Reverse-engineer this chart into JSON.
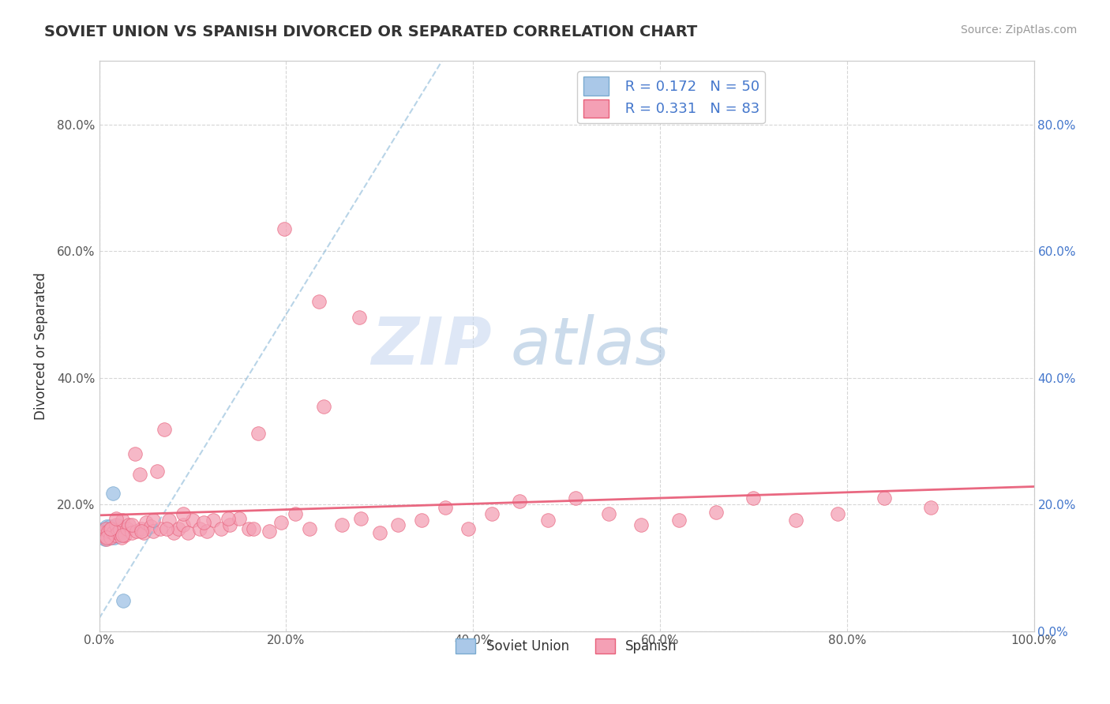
{
  "title": "SOVIET UNION VS SPANISH DIVORCED OR SEPARATED CORRELATION CHART",
  "source_text": "Source: ZipAtlas.com",
  "ylabel": "Divorced or Separated",
  "xlim": [
    0.0,
    1.0
  ],
  "ylim": [
    0.0,
    0.9
  ],
  "xtick_vals": [
    0.0,
    0.2,
    0.4,
    0.6,
    0.8,
    1.0
  ],
  "ytick_vals": [
    0.0,
    0.2,
    0.4,
    0.6,
    0.8
  ],
  "legend_r1": "R = 0.172",
  "legend_n1": "N = 50",
  "legend_r2": "R = 0.331",
  "legend_n2": "N = 83",
  "soviet_color": "#aac8e8",
  "spanish_color": "#f4a0b5",
  "soviet_edge_color": "#7aaad0",
  "spanish_edge_color": "#e8607a",
  "soviet_line_color": "#8ab8d8",
  "spanish_line_color": "#e8607a",
  "title_fontsize": 14,
  "background_color": "#ffffff",
  "grid_color": "#cccccc",
  "watermark_left": "ZIP",
  "watermark_right": "atlas",
  "soviet_points_x": [
    0.002,
    0.003,
    0.003,
    0.004,
    0.004,
    0.005,
    0.005,
    0.005,
    0.006,
    0.006,
    0.007,
    0.007,
    0.007,
    0.008,
    0.008,
    0.008,
    0.009,
    0.009,
    0.009,
    0.01,
    0.01,
    0.01,
    0.011,
    0.011,
    0.012,
    0.012,
    0.013,
    0.013,
    0.014,
    0.014,
    0.015,
    0.015,
    0.016,
    0.016,
    0.017,
    0.017,
    0.018,
    0.018,
    0.019,
    0.019,
    0.02,
    0.02,
    0.021,
    0.021,
    0.022,
    0.022,
    0.023,
    0.024,
    0.025,
    0.026
  ],
  "soviet_points_y": [
    0.155,
    0.16,
    0.152,
    0.158,
    0.148,
    0.162,
    0.155,
    0.15,
    0.158,
    0.145,
    0.162,
    0.158,
    0.152,
    0.165,
    0.155,
    0.148,
    0.16,
    0.155,
    0.15,
    0.162,
    0.158,
    0.152,
    0.165,
    0.155,
    0.16,
    0.152,
    0.155,
    0.148,
    0.162,
    0.158,
    0.218,
    0.155,
    0.162,
    0.148,
    0.158,
    0.152,
    0.165,
    0.16,
    0.152,
    0.158,
    0.162,
    0.155,
    0.16,
    0.15,
    0.165,
    0.155,
    0.158,
    0.162,
    0.155,
    0.048
  ],
  "spanish_points_x": [
    0.003,
    0.005,
    0.007,
    0.008,
    0.01,
    0.012,
    0.013,
    0.015,
    0.017,
    0.018,
    0.02,
    0.022,
    0.024,
    0.025,
    0.027,
    0.03,
    0.032,
    0.035,
    0.038,
    0.04,
    0.043,
    0.045,
    0.048,
    0.05,
    0.055,
    0.058,
    0.062,
    0.065,
    0.07,
    0.075,
    0.08,
    0.085,
    0.09,
    0.095,
    0.1,
    0.108,
    0.115,
    0.122,
    0.13,
    0.14,
    0.15,
    0.16,
    0.17,
    0.182,
    0.195,
    0.21,
    0.225,
    0.24,
    0.26,
    0.28,
    0.3,
    0.32,
    0.345,
    0.37,
    0.395,
    0.42,
    0.45,
    0.48,
    0.51,
    0.545,
    0.58,
    0.62,
    0.66,
    0.7,
    0.745,
    0.79,
    0.84,
    0.89,
    0.008,
    0.012,
    0.018,
    0.025,
    0.035,
    0.045,
    0.058,
    0.072,
    0.09,
    0.112,
    0.138,
    0.165,
    0.198,
    0.235,
    0.278
  ],
  "spanish_points_y": [
    0.155,
    0.15,
    0.162,
    0.145,
    0.158,
    0.148,
    0.162,
    0.155,
    0.152,
    0.168,
    0.155,
    0.16,
    0.148,
    0.175,
    0.152,
    0.162,
    0.168,
    0.155,
    0.28,
    0.158,
    0.248,
    0.162,
    0.155,
    0.172,
    0.165,
    0.158,
    0.252,
    0.162,
    0.318,
    0.175,
    0.155,
    0.162,
    0.168,
    0.155,
    0.175,
    0.162,
    0.158,
    0.175,
    0.162,
    0.168,
    0.178,
    0.162,
    0.312,
    0.158,
    0.172,
    0.185,
    0.162,
    0.355,
    0.168,
    0.178,
    0.155,
    0.168,
    0.175,
    0.195,
    0.162,
    0.185,
    0.205,
    0.175,
    0.21,
    0.185,
    0.168,
    0.175,
    0.188,
    0.21,
    0.175,
    0.185,
    0.21,
    0.195,
    0.148,
    0.162,
    0.178,
    0.152,
    0.168,
    0.158,
    0.175,
    0.162,
    0.185,
    0.172,
    0.178,
    0.162,
    0.635,
    0.52,
    0.495
  ]
}
